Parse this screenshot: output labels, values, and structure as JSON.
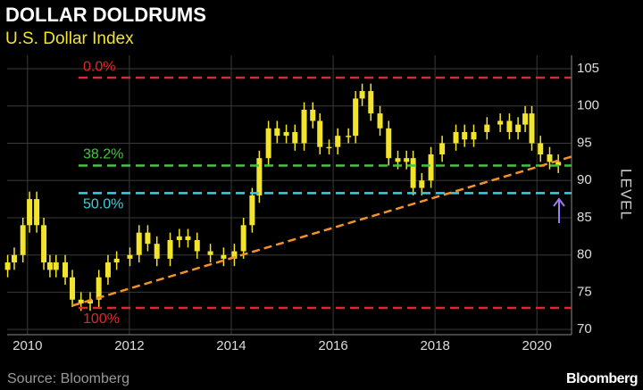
{
  "chart_data": {
    "type": "candlestick",
    "title": "DOLLAR DOLDRUMS",
    "subtitle": "U.S. Dollar Index",
    "y_label": "LEVEL",
    "source": "Source: Bloomberg",
    "brand": "Bloomberg",
    "color": "#f2e42c",
    "x": [
      2009.61,
      2009.74,
      2009.91,
      2010.04,
      2010.18,
      2010.32,
      2010.44,
      2010.56,
      2010.74,
      2010.88,
      2011.05,
      2011.23,
      2011.4,
      2011.58,
      2011.75,
      2012.01,
      2012.19,
      2012.36,
      2012.54,
      2012.8,
      2012.98,
      2013.15,
      2013.33,
      2013.59,
      2013.85,
      2014.06,
      2014.24,
      2014.41,
      2014.55,
      2014.73,
      2014.9,
      2015.08,
      2015.25,
      2015.43,
      2015.6,
      2015.74,
      2015.92,
      2016.09,
      2016.3,
      2016.44,
      2016.57,
      2016.74,
      2016.92,
      2017.09,
      2017.27,
      2017.44,
      2017.57,
      2017.74,
      2017.92,
      2018.14,
      2018.41,
      2018.58,
      2018.76,
      2019.02,
      2019.28,
      2019.46,
      2019.63,
      2019.77,
      2019.9,
      2020.07,
      2020.25,
      2020.42
    ],
    "open": [
      78,
      79,
      80,
      84,
      87.5,
      84,
      79,
      78,
      79,
      77,
      74,
      73.5,
      74,
      77,
      79,
      79.5,
      80,
      83,
      81.5,
      79.5,
      82,
      82.5,
      82,
      80.5,
      80,
      79.5,
      80.5,
      84,
      88,
      93,
      97,
      96,
      96.5,
      95,
      99.5,
      98,
      94.5,
      94.5,
      96,
      96,
      101,
      102,
      99,
      97,
      93,
      92.5,
      93,
      89,
      90,
      93.5,
      95,
      96.5,
      95.5,
      96.5,
      97.5,
      98,
      96.5,
      97.5,
      99,
      95,
      93.5,
      92.5
    ],
    "high": [
      80,
      81,
      85,
      88.5,
      88.5,
      85,
      80,
      80,
      80,
      78,
      75,
      75,
      78,
      80,
      80.5,
      81,
      84,
      84,
      82.5,
      83,
      83.5,
      83.5,
      83,
      81.5,
      81,
      81.5,
      85,
      89,
      94,
      98,
      98,
      97.5,
      97.5,
      100.5,
      100.5,
      99,
      95.5,
      97,
      97,
      102,
      103,
      103,
      100,
      98,
      94,
      94,
      94,
      91,
      94.5,
      96,
      97.5,
      97.5,
      97.5,
      98.5,
      99,
      99,
      98.5,
      100,
      100,
      96,
      94.5,
      93.5
    ],
    "low": [
      77,
      78,
      79,
      83,
      83,
      78,
      77,
      77,
      76,
      73,
      72.5,
      72.5,
      73,
      76,
      78,
      78.5,
      79,
      80.5,
      78.5,
      78.5,
      81,
      81,
      79.5,
      79,
      78.5,
      78.5,
      79.5,
      83,
      87,
      92,
      95,
      95,
      94,
      94,
      97,
      93.5,
      93.5,
      93.5,
      95,
      95,
      100,
      98,
      96,
      92,
      91.5,
      91.5,
      88,
      88,
      89,
      92.5,
      94,
      94.5,
      94.5,
      95.5,
      96.5,
      95.5,
      95.5,
      96.5,
      94,
      92.5,
      91.5,
      91
    ],
    "close": [
      79,
      80,
      84,
      87.5,
      84,
      79,
      78,
      79,
      77,
      74,
      73.5,
      74,
      77,
      79,
      79.5,
      80,
      83,
      81.5,
      79.5,
      82,
      82.5,
      82,
      80.5,
      80,
      79.5,
      80.5,
      84,
      88,
      93,
      97,
      96,
      96.5,
      95,
      99.5,
      98,
      94.5,
      94.5,
      96,
      96,
      101,
      102,
      99,
      97,
      93,
      92.5,
      93,
      89,
      90,
      93.5,
      95,
      96.5,
      95.5,
      96.5,
      97.5,
      98,
      96.5,
      97.5,
      99,
      95,
      93.5,
      92.5,
      92
    ],
    "levels": [
      {
        "label": "0.0%",
        "value": 103.8,
        "color": "#e0282a"
      },
      {
        "label": "38.2%",
        "value": 92.0,
        "color": "#3ec93a"
      },
      {
        "label": "50.0%",
        "value": 88.3,
        "color": "#3ad0e0"
      },
      {
        "label": "100%",
        "value": 72.9,
        "color": "#e0282a"
      }
    ],
    "trendline": {
      "x": [
        2010.88,
        2020.68
      ],
      "values": [
        73.2,
        93.2
      ],
      "color": "#f0932b"
    },
    "xlim": [
      2009.6,
      2020.68
    ],
    "xticks": [
      2010,
      2012,
      2014,
      2016,
      2018,
      2020
    ],
    "ylim": [
      69.3,
      106.8
    ],
    "yticks": [
      70,
      75,
      80,
      85,
      90,
      95,
      100,
      105
    ],
    "grid": true
  }
}
